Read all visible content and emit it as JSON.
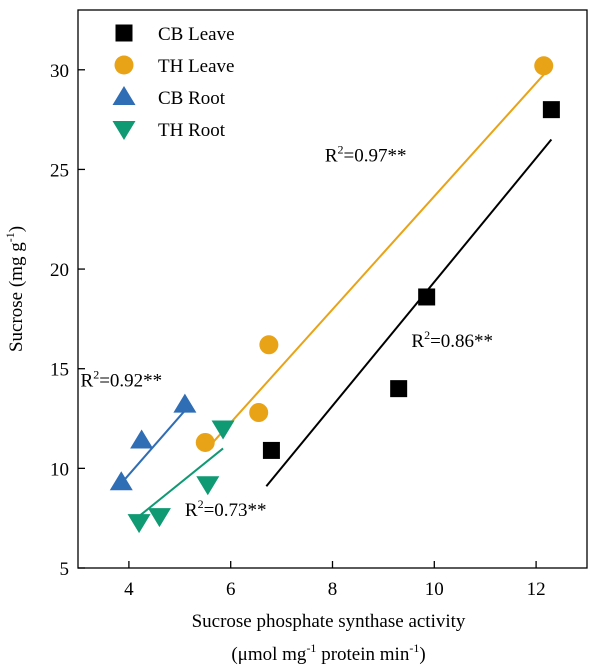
{
  "chart_data": {
    "type": "scatter",
    "xlabel_line1": "Sucrose phosphate synthase activity",
    "xlabel_line2_parts": [
      "(μmol mg",
      "-1",
      " protein min",
      "-1",
      ")"
    ],
    "ylabel_parts": [
      "Sucrose (mg g",
      "-1",
      ")"
    ],
    "xlim": [
      3,
      13
    ],
    "ylim": [
      5,
      33
    ],
    "xticks": [
      4,
      6,
      8,
      10,
      12
    ],
    "yticks": [
      5,
      10,
      15,
      20,
      25,
      30
    ],
    "grid": false,
    "legend_position": "top-left",
    "series": [
      {
        "name": "CB Leave",
        "marker": "square",
        "color": "#000000",
        "points": [
          [
            6.8,
            10.9
          ],
          [
            9.3,
            14.0
          ],
          [
            9.85,
            18.6
          ],
          [
            12.3,
            28.0
          ]
        ],
        "fit_line": [
          [
            6.7,
            9.1
          ],
          [
            12.3,
            26.5
          ]
        ],
        "r2_label": [
          "R",
          "2",
          "=0.86**"
        ],
        "r2_anchor": [
          9.55,
          16.1
        ]
      },
      {
        "name": "TH Leave",
        "marker": "circle",
        "color": "#E8A317",
        "points": [
          [
            5.5,
            11.3
          ],
          [
            6.55,
            12.8
          ],
          [
            6.75,
            16.2
          ],
          [
            12.15,
            30.2
          ]
        ],
        "fit_line": [
          [
            5.65,
            11.3
          ],
          [
            12.2,
            29.9
          ]
        ],
        "r2_label": [
          "R",
          "2",
          "=0.97**"
        ],
        "r2_anchor": [
          7.85,
          25.4
        ]
      },
      {
        "name": "CB Root",
        "marker": "triangle-up",
        "color": "#2F6DB5",
        "points": [
          [
            3.85,
            9.3
          ],
          [
            4.25,
            11.4
          ],
          [
            5.1,
            13.2
          ]
        ],
        "fit_line": [
          [
            3.8,
            9.1
          ],
          [
            5.1,
            12.9
          ]
        ],
        "r2_label": [
          "R",
          "2",
          "=0.92**"
        ],
        "r2_anchor": [
          3.05,
          14.1
        ]
      },
      {
        "name": "TH Root",
        "marker": "triangle-down",
        "color": "#0F9A73",
        "points": [
          [
            4.2,
            7.3
          ],
          [
            4.6,
            7.6
          ],
          [
            5.55,
            9.2
          ],
          [
            5.85,
            12.0
          ]
        ],
        "fit_line": [
          [
            4.2,
            7.6
          ],
          [
            5.85,
            11.0
          ]
        ],
        "r2_label": [
          "R",
          "2",
          "=0.73**"
        ],
        "r2_anchor": [
          5.1,
          7.6
        ]
      }
    ]
  }
}
